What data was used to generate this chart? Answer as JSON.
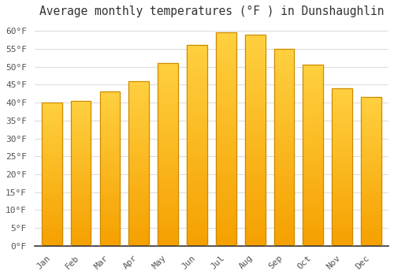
{
  "title": "Average monthly temperatures (°F ) in Dunshaughlin",
  "months": [
    "Jan",
    "Feb",
    "Mar",
    "Apr",
    "May",
    "Jun",
    "Jul",
    "Aug",
    "Sep",
    "Oct",
    "Nov",
    "Dec"
  ],
  "values": [
    40.0,
    40.5,
    43.0,
    46.0,
    51.0,
    56.0,
    59.5,
    59.0,
    55.0,
    50.5,
    44.0,
    41.5
  ],
  "bar_color_top": "#FFD040",
  "bar_color_bottom": "#F5A000",
  "bar_edge_color": "#CC8800",
  "background_color": "#FFFFFF",
  "plot_bg_color": "#FFFFFF",
  "grid_color": "#DDDDDD",
  "ylim": [
    0,
    62
  ],
  "yticks": [
    0,
    5,
    10,
    15,
    20,
    25,
    30,
    35,
    40,
    45,
    50,
    55,
    60
  ],
  "title_fontsize": 10.5,
  "tick_fontsize": 8,
  "font_family": "monospace"
}
